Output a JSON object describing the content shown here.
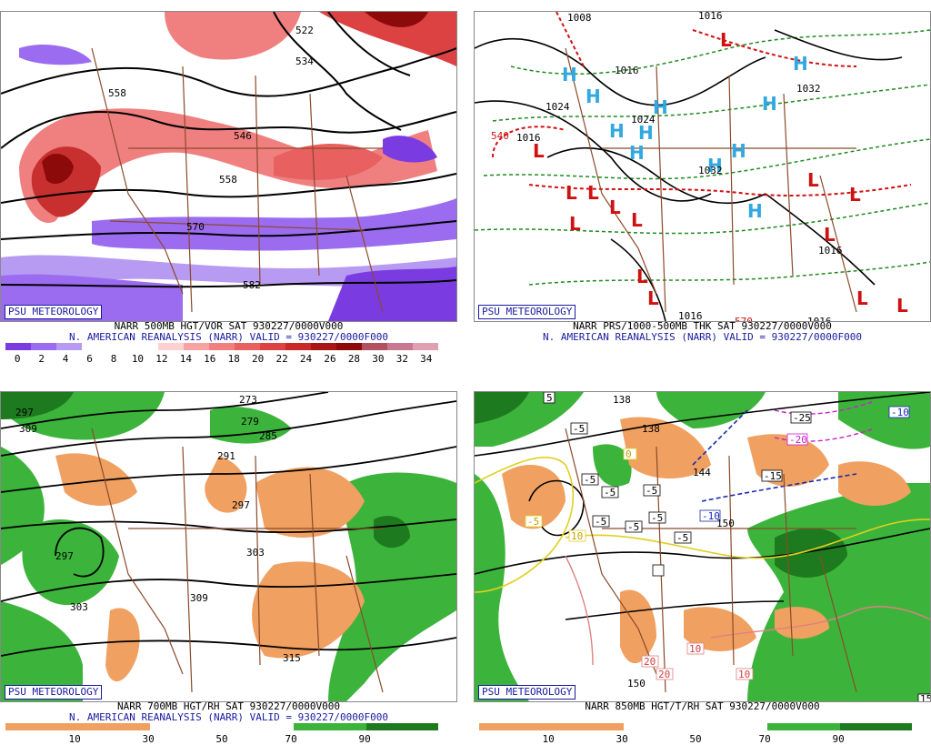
{
  "badge": "PSU METEOROLOGY",
  "panels": {
    "p1": {
      "cap1": "NARR 500MB HGT/VOR SAT 930227/0000V000",
      "cap2": "N. AMERICAN REANALYSIS (NARR) VALID = 930227/0000F000",
      "scale": [
        "0",
        "2",
        "4",
        "6",
        "8",
        "10",
        "12",
        "14",
        "16",
        "18",
        "20",
        "22",
        "24",
        "26",
        "28",
        "30",
        "32",
        "34"
      ],
      "colors": [
        "#7a3be0",
        "#9b6cf0",
        "#b79af2",
        "#ffffff",
        "#ffffff",
        "#ffffff",
        "#ffd0d0",
        "#f7a3a3",
        "#f07f7f",
        "#e86060",
        "#dc4242",
        "#c82828",
        "#aa1515",
        "#8c0a0a",
        "#b05060",
        "#c87890",
        "#e0a0b0"
      ],
      "labels": [
        "522",
        "534",
        "546",
        "558",
        "558",
        "570",
        "582"
      ]
    },
    "p2": {
      "cap1": "NARR PRS/1000-500MB THK SAT 930227/0000V000",
      "cap2": "N. AMERICAN REANALYSIS (NARR) VALID = 930227/0000F000",
      "labels": [
        "1008",
        "1016",
        "1016",
        "1024",
        "1032",
        "1024",
        "1032",
        "1016",
        "1016",
        "540",
        "1016",
        "1016",
        "570"
      ]
    },
    "p3": {
      "cap1": "NARR 700MB HGT/RH SAT 930227/0000V000",
      "cap2": "N. AMERICAN REANALYSIS (NARR) VALID = 930227/0000F000",
      "scale": [
        "10",
        "30",
        "50",
        "70",
        "90"
      ],
      "colors": [
        "#f0a060",
        "#f0a060",
        "#ffffff",
        "#ffffff",
        "#3cb43c",
        "#1e7a1e"
      ],
      "labels": [
        "297",
        "309",
        "273",
        "279",
        "285",
        "291",
        "297",
        "303",
        "309",
        "297",
        "303",
        "315"
      ]
    },
    "p4": {
      "cap1": "NARR 850MB HGT/T/RH SAT 930227/0000V000",
      "cap2": "",
      "scale": [
        "10",
        "30",
        "50",
        "70",
        "90"
      ],
      "colors": [
        "#f0a060",
        "#f0a060",
        "#ffffff",
        "#ffffff",
        "#3cb43c",
        "#1e7a1e"
      ],
      "labels": [
        "-5",
        "-5",
        "-5",
        "-5",
        "-5",
        "-5",
        "-5",
        "-5",
        "-10",
        "-10",
        "-15",
        "-20",
        "-25",
        "-5",
        "10",
        "10",
        "20",
        "20",
        "10",
        "15",
        "5",
        "0",
        "150",
        "144",
        "138",
        "138",
        "150"
      ]
    }
  }
}
